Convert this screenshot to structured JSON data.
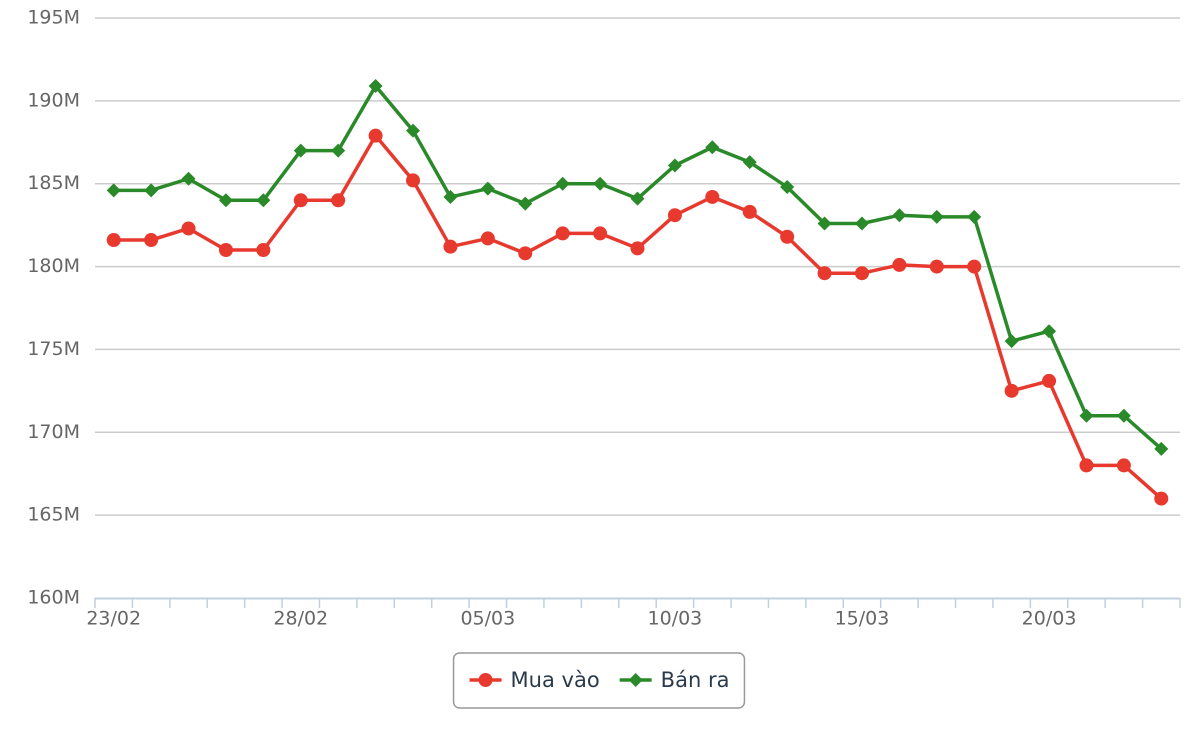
{
  "chart_data": {
    "type": "line",
    "categories": [
      "23/02",
      null,
      null,
      null,
      null,
      "28/02",
      null,
      null,
      null,
      null,
      "05/03",
      null,
      null,
      null,
      null,
      "10/03",
      null,
      null,
      null,
      null,
      "15/03",
      null,
      null,
      null,
      null,
      "20/03",
      null,
      null,
      null
    ],
    "series": [
      {
        "name": "Mua vào",
        "color": "#e8392f",
        "marker": "circle",
        "values": [
          181600000,
          181600000,
          182300000,
          181000000,
          181000000,
          184000000,
          184000000,
          187900000,
          185200000,
          181200000,
          181700000,
          180800000,
          182000000,
          182000000,
          181100000,
          183100000,
          184200000,
          183300000,
          181800000,
          179600000,
          179600000,
          180100000,
          180000000,
          180000000,
          172500000,
          173100000,
          168000000,
          168000000,
          166000000
        ]
      },
      {
        "name": "Bán ra",
        "color": "#2a8a2a",
        "marker": "diamond",
        "values": [
          184600000,
          184600000,
          185300000,
          184000000,
          184000000,
          187000000,
          187000000,
          190900000,
          188200000,
          184200000,
          184700000,
          183800000,
          185000000,
          185000000,
          184100000,
          186100000,
          187200000,
          186300000,
          184800000,
          182600000,
          182600000,
          183100000,
          183000000,
          183000000,
          175500000,
          176100000,
          171000000,
          171000000,
          169000000
        ]
      }
    ],
    "ylim": [
      160000000,
      195000000
    ],
    "yticks": [
      {
        "value": 160000000,
        "label": "160M"
      },
      {
        "value": 165000000,
        "label": "165M"
      },
      {
        "value": 170000000,
        "label": "170M"
      },
      {
        "value": 175000000,
        "label": "175M"
      },
      {
        "value": 180000000,
        "label": "180M"
      },
      {
        "value": 185000000,
        "label": "185M"
      },
      {
        "value": 190000000,
        "label": "190M"
      },
      {
        "value": 195000000,
        "label": "195M"
      }
    ],
    "grid": true,
    "legend": "bottom"
  }
}
